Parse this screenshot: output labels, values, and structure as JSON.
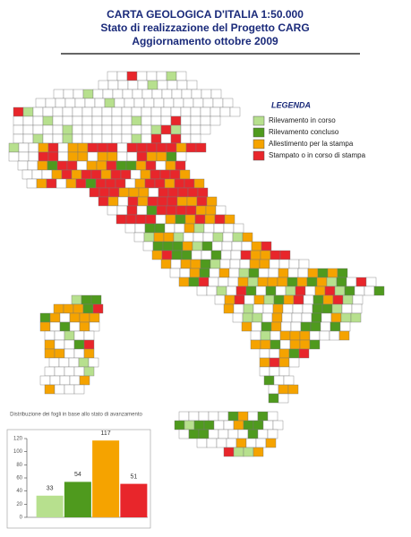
{
  "header": {
    "title": "CARTA GEOLOGICA D'ITALIA 1:50.000",
    "subtitle": "Stato di realizzazione del Progetto CARG",
    "update": "Aggiornamento ottobre 2009"
  },
  "legend": {
    "title": "LEGENDA",
    "items": [
      {
        "label": "Rilevamento in corso",
        "color": "#b7e08e"
      },
      {
        "label": "Rilevamento concluso",
        "color": "#4f9a1e"
      },
      {
        "label": "Allestimento per la stampa",
        "color": "#f5a300"
      },
      {
        "label": "Stampato o in corso di stampa",
        "color": "#e8262b"
      }
    ]
  },
  "chart_data": {
    "type": "bar",
    "title": "Distribuzione dei fogli in base allo stato di avanzamento",
    "categories": [
      null,
      null,
      null,
      null
    ],
    "values": [
      33,
      54,
      117,
      51
    ],
    "colors": [
      "#b7e08e",
      "#4f9a1e",
      "#f5a300",
      "#e8262b"
    ],
    "ylim": [
      0,
      120
    ],
    "yticks": [
      0,
      20,
      40,
      60,
      80,
      100,
      120
    ]
  }
}
